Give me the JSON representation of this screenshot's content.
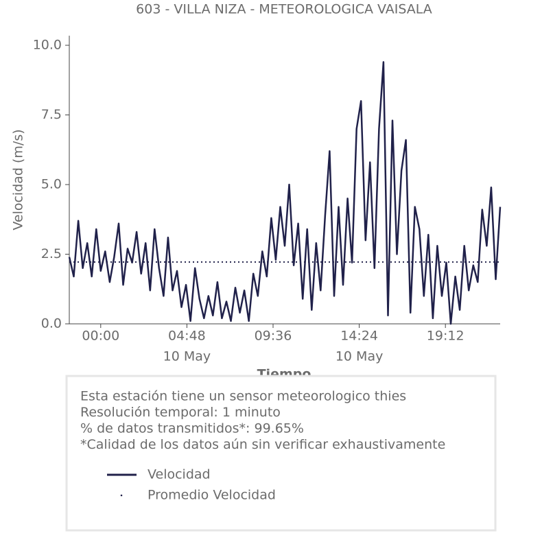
{
  "chart_data": {
    "type": "line",
    "title": "603 - VILLA NIZA - METEOROLOGICA VAISALA",
    "xlabel": "Tiempo",
    "ylabel": "Velocidad (m/s)",
    "xlim": [
      -1.75,
      22.25
    ],
    "xticks": [
      {
        "value": 0,
        "label": "00:00"
      },
      {
        "value": 4.8,
        "label": "04:48"
      },
      {
        "value": 9.6,
        "label": "09:36"
      },
      {
        "value": 14.4,
        "label": "14:24"
      },
      {
        "value": 19.2,
        "label": "19:12"
      }
    ],
    "xtick_sublabels": [
      null,
      "10 May",
      null,
      "10 May",
      null
    ],
    "ylim": [
      0,
      10
    ],
    "yticks": [
      {
        "value": 0,
        "label": "0.0"
      },
      2.5,
      {
        "value": 5,
        "label": "5.0"
      },
      7.5,
      {
        "value": 10,
        "label": "10.0"
      }
    ],
    "series": [
      {
        "name": "Velocidad",
        "color": "#20214a",
        "style": "solid",
        "x": [
          -1.75,
          -1.5,
          -1.25,
          -1,
          -0.75,
          -0.5,
          -0.25,
          0,
          0.25,
          0.5,
          0.75,
          1,
          1.25,
          1.5,
          1.75,
          2,
          2.25,
          2.5,
          2.75,
          3,
          3.25,
          3.5,
          3.75,
          4,
          4.25,
          4.5,
          4.75,
          5,
          5.25,
          5.5,
          5.75,
          6,
          6.25,
          6.5,
          6.75,
          7,
          7.25,
          7.5,
          7.75,
          8,
          8.25,
          8.5,
          8.75,
          9,
          9.25,
          9.5,
          9.75,
          10,
          10.25,
          10.5,
          10.75,
          11,
          11.25,
          11.5,
          11.75,
          12,
          12.25,
          12.5,
          12.75,
          13,
          13.25,
          13.5,
          13.75,
          14,
          14.25,
          14.5,
          14.75,
          15,
          15.25,
          15.5,
          15.75,
          16,
          16.25,
          16.5,
          16.75,
          17,
          17.25,
          17.5,
          17.75,
          18,
          18.25,
          18.5,
          18.75,
          19,
          19.25,
          19.5,
          19.75,
          20,
          20.25,
          20.5,
          20.75,
          21,
          21.25,
          21.5,
          21.75,
          22,
          22.25
        ],
        "values": [
          2.4,
          1.7,
          3.7,
          2.0,
          2.9,
          1.7,
          3.4,
          1.9,
          2.6,
          1.5,
          2.4,
          3.6,
          1.4,
          2.7,
          2.2,
          3.3,
          1.8,
          2.9,
          1.2,
          3.4,
          2.0,
          1.0,
          3.1,
          1.2,
          1.9,
          0.6,
          1.4,
          0.1,
          2.0,
          0.9,
          0.2,
          1.0,
          0.3,
          1.5,
          0.2,
          0.8,
          0.1,
          1.3,
          0.4,
          1.2,
          0.1,
          1.8,
          1.0,
          2.6,
          1.7,
          3.8,
          2.3,
          4.2,
          2.8,
          5.0,
          2.1,
          3.6,
          0.9,
          3.4,
          0.5,
          2.9,
          1.2,
          3.9,
          6.2,
          1.0,
          4.2,
          1.4,
          4.5,
          2.2,
          7.0,
          8.0,
          3.0,
          5.8,
          2.0,
          7.0,
          9.4,
          0.3,
          7.3,
          2.5,
          5.5,
          6.6,
          0.4,
          4.2,
          3.4,
          1.0,
          3.2,
          0.2,
          2.8,
          1.0,
          2.2,
          0.0,
          1.7,
          0.5,
          2.8,
          1.2,
          2.1,
          1.5,
          4.1,
          2.8,
          4.9,
          1.6,
          4.2
        ]
      },
      {
        "name": "Promedio Velocidad",
        "color": "#20214a",
        "style": "dotted",
        "x": [
          -1.75,
          22.25
        ],
        "values": [
          2.22,
          2.22
        ]
      }
    ],
    "notes": [
      "Esta estación tiene un sensor meteorologico thies",
      "Resolución temporal: 1 minuto",
      "% de datos transmitidos*: 99.65%",
      "*Calidad de los datos aún sin verificar exhaustivamente"
    ]
  }
}
